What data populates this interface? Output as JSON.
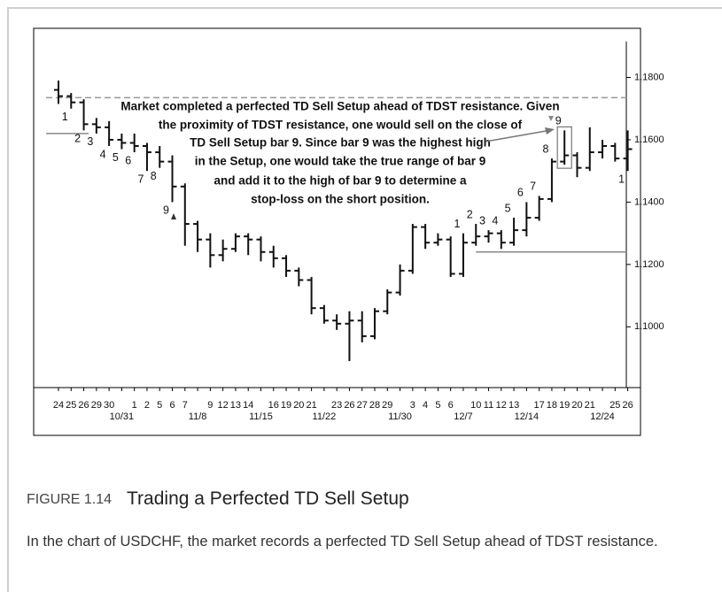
{
  "chart_data": {
    "type": "ohlc",
    "annotation": [
      "Market completed a perfected TD Sell Setup ahead of TDST resistance. Given",
      "the proximity of TDST resistance, one would sell on the close of",
      "TD Sell Setup bar 9. Since bar 9 was the highest high",
      "in the Setup, one would take the true range of bar 9",
      "and add it to the high of bar 9 to determine a",
      "stop-loss on the short position."
    ],
    "categories": [
      "24",
      "25",
      "26",
      "29",
      "30",
      null,
      "1",
      "2",
      "5",
      "6",
      "7",
      null,
      "9",
      "12",
      "13",
      "14",
      null,
      "16",
      "19",
      "20",
      "21",
      null,
      "23",
      "26",
      "27",
      "28",
      "29",
      null,
      "3",
      "4",
      "5",
      "6",
      null,
      "10",
      "11",
      "12",
      "13",
      null,
      "17",
      "18",
      "19",
      "20",
      "21",
      null,
      "25",
      "26"
    ],
    "period_labels": [
      null,
      null,
      null,
      null,
      null,
      "10/31",
      null,
      null,
      null,
      null,
      null,
      "11/8",
      null,
      null,
      null,
      null,
      "11/15",
      null,
      null,
      null,
      null,
      "11/22",
      null,
      null,
      null,
      null,
      null,
      "11/30",
      null,
      null,
      null,
      null,
      "12/7",
      null,
      null,
      null,
      null,
      "12/14",
      null,
      null,
      null,
      null,
      null,
      "12/24",
      null,
      null
    ],
    "setup_labels": [
      null,
      "1",
      "2",
      "3",
      "4",
      "5",
      "6",
      "7",
      "8",
      "9",
      null,
      null,
      null,
      null,
      null,
      null,
      null,
      null,
      null,
      null,
      null,
      null,
      null,
      null,
      null,
      null,
      null,
      null,
      null,
      null,
      null,
      null,
      "1",
      "2",
      "3",
      "4",
      "5",
      "6",
      "7",
      "8",
      "9",
      null,
      null,
      null,
      null,
      "1"
    ],
    "open": [
      1.176,
      1.174,
      1.172,
      1.165,
      1.164,
      1.16,
      1.159,
      1.158,
      1.156,
      1.153,
      1.145,
      1.133,
      1.128,
      1.123,
      1.125,
      1.129,
      1.128,
      1.124,
      1.122,
      1.118,
      1.115,
      1.106,
      1.102,
      1.101,
      1.102,
      1.097,
      1.105,
      1.111,
      1.118,
      1.132,
      1.127,
      1.128,
      1.117,
      1.127,
      1.129,
      1.13,
      1.127,
      1.131,
      1.135,
      1.141,
      1.153,
      1.155,
      1.151,
      1.156,
      1.158,
      1.154
    ],
    "high": [
      1.179,
      1.175,
      1.173,
      1.167,
      1.166,
      1.162,
      1.162,
      1.159,
      1.158,
      1.155,
      1.146,
      1.134,
      1.13,
      1.128,
      1.13,
      1.13,
      1.129,
      1.126,
      1.123,
      1.119,
      1.116,
      1.107,
      1.104,
      1.105,
      1.105,
      1.106,
      1.112,
      1.12,
      1.133,
      1.133,
      1.13,
      1.129,
      1.13,
      1.133,
      1.131,
      1.131,
      1.135,
      1.14,
      1.142,
      1.154,
      1.163,
      1.156,
      1.164,
      1.16,
      1.159,
      1.163
    ],
    "low": [
      1.1715,
      1.17,
      1.163,
      1.162,
      1.158,
      1.157,
      1.156,
      1.15,
      1.151,
      1.14,
      1.126,
      1.124,
      1.119,
      1.121,
      1.124,
      1.123,
      1.121,
      1.119,
      1.116,
      1.113,
      1.104,
      1.101,
      1.099,
      1.089,
      1.095,
      1.096,
      1.104,
      1.11,
      1.117,
      1.125,
      1.126,
      1.116,
      1.116,
      1.126,
      1.127,
      1.125,
      1.126,
      1.129,
      1.134,
      1.14,
      1.152,
      1.148,
      1.15,
      1.154,
      1.153,
      1.15
    ],
    "close": [
      1.174,
      1.172,
      1.165,
      1.164,
      1.16,
      1.159,
      1.158,
      1.156,
      1.153,
      1.145,
      1.133,
      1.128,
      1.123,
      1.125,
      1.129,
      1.128,
      1.124,
      1.122,
      1.118,
      1.115,
      1.106,
      1.102,
      1.101,
      1.102,
      1.097,
      1.105,
      1.111,
      1.118,
      1.132,
      1.127,
      1.128,
      1.117,
      1.127,
      1.129,
      1.13,
      1.127,
      1.131,
      1.135,
      1.141,
      1.153,
      1.155,
      1.151,
      1.156,
      1.158,
      1.154,
      1.157
    ],
    "reference_lines": [
      {
        "value": 1.1735,
        "style": "dashed"
      },
      {
        "value": 1.162,
        "style": "solid"
      },
      {
        "value": 1.124,
        "style": "solid"
      }
    ],
    "color": "#111",
    "ylim": [
      1.0805,
      1.1915
    ],
    "yticks": [
      {
        "value": 1.18,
        "label": "1.1800"
      },
      {
        "value": 1.16,
        "label": "1.1600"
      },
      {
        "value": 1.14,
        "label": "1.1400"
      },
      {
        "value": 1.12,
        "label": "1.1200"
      },
      {
        "value": 1.1,
        "label": "1.1000"
      }
    ]
  },
  "figure": {
    "number": "FIGURE 1.14",
    "title": "Trading a Perfected TD Sell Setup",
    "caption": "In the chart of USDCHF, the market records a perfected TD Sell Setup ahead of TDST resistance."
  }
}
